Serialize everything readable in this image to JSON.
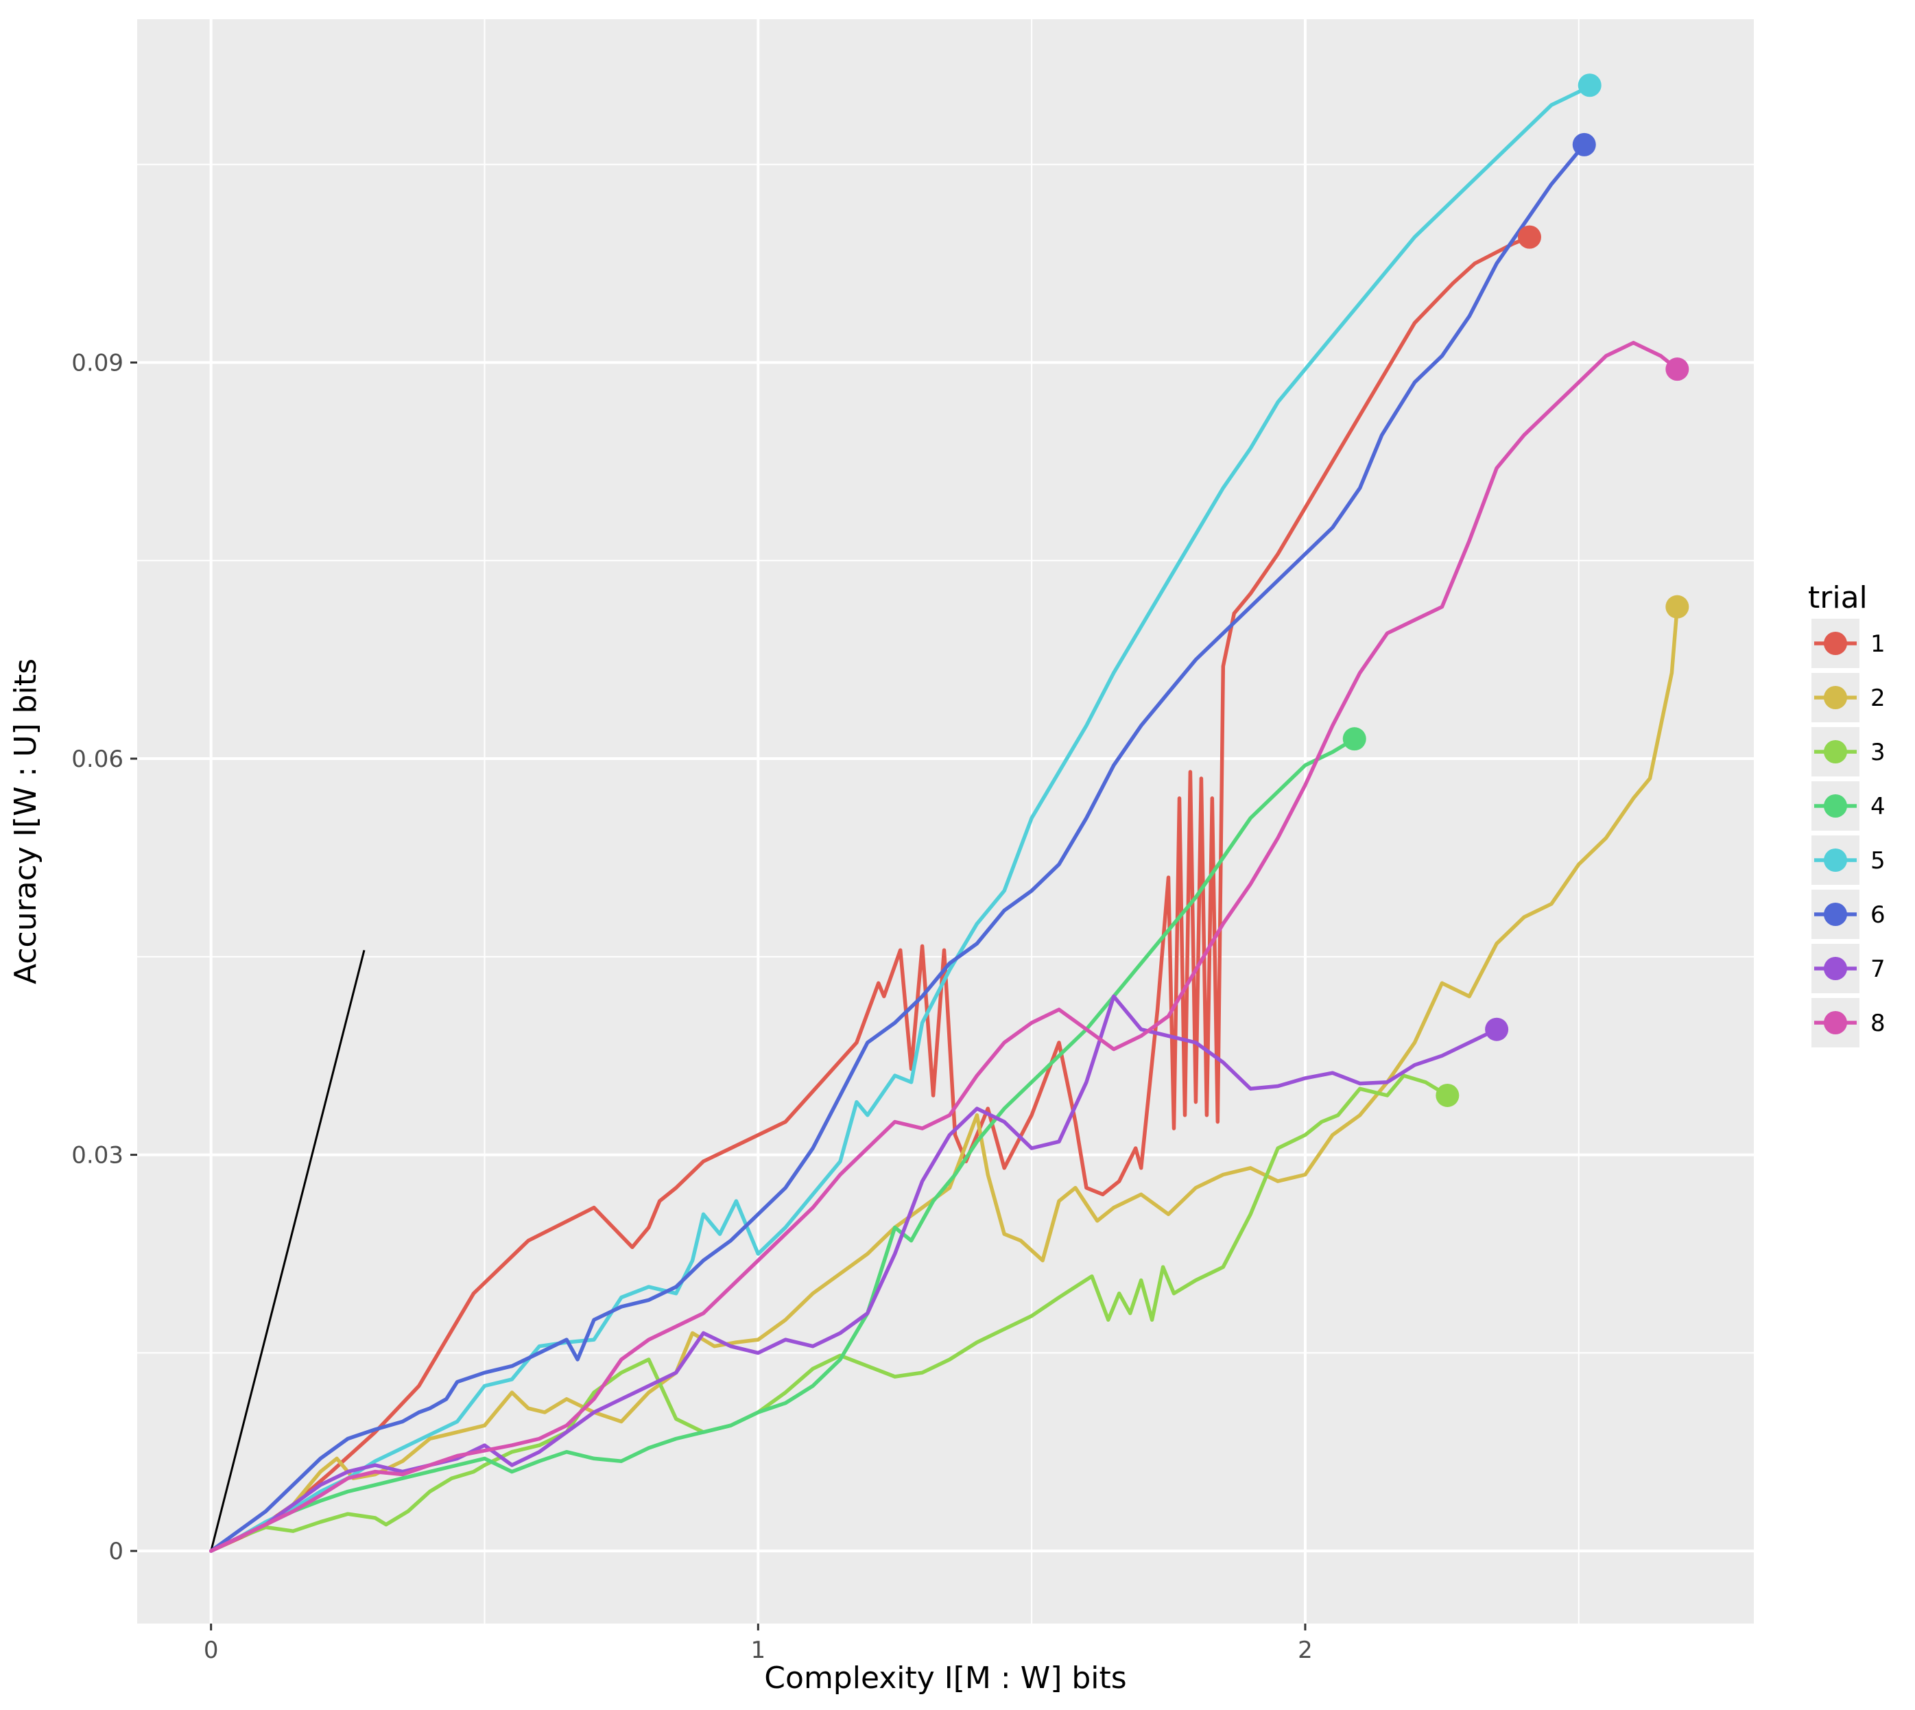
{
  "chart_data": {
    "type": "line",
    "xlabel": "Complexity I[M : W] bits",
    "ylabel": "Accuracy I[W : U] bits",
    "xlim": [
      -0.135,
      2.82
    ],
    "ylim": [
      -0.0055,
      0.116
    ],
    "x_ticks": [
      0,
      1,
      2
    ],
    "x_tick_labels": [
      "0",
      "1",
      "2"
    ],
    "y_ticks": [
      0,
      0.03,
      0.06,
      0.09
    ],
    "y_tick_labels": [
      "0",
      "0.03",
      "0.06",
      "0.09"
    ],
    "grid": true,
    "legend": {
      "title": "trial",
      "position": "right"
    },
    "reference_line": {
      "x": [
        0,
        0.28
      ],
      "y": [
        0,
        0.0455
      ],
      "color": "#000000"
    },
    "series": [
      {
        "name": "1",
        "color": "#E05A4F",
        "x": [
          0.0,
          0.08,
          0.15,
          0.22,
          0.3,
          0.38,
          0.48,
          0.58,
          0.7,
          0.77,
          0.8,
          0.82,
          0.85,
          0.9,
          0.95,
          1.05,
          1.18,
          1.22,
          1.23,
          1.26,
          1.28,
          1.3,
          1.32,
          1.34,
          1.36,
          1.38,
          1.42,
          1.45,
          1.5,
          1.55,
          1.58,
          1.6,
          1.63,
          1.66,
          1.69,
          1.7,
          1.73,
          1.75,
          1.76,
          1.77,
          1.78,
          1.79,
          1.8,
          1.81,
          1.82,
          1.83,
          1.84,
          1.85,
          1.87,
          1.9,
          1.95,
          2.0,
          2.1,
          2.2,
          2.27,
          2.31,
          2.38,
          2.41
        ],
        "y": [
          0.0,
          0.0015,
          0.0035,
          0.006,
          0.009,
          0.0125,
          0.0195,
          0.0235,
          0.026,
          0.023,
          0.0245,
          0.0265,
          0.0275,
          0.0295,
          0.0305,
          0.0325,
          0.0385,
          0.043,
          0.042,
          0.0455,
          0.0365,
          0.0458,
          0.0345,
          0.0455,
          0.0315,
          0.0295,
          0.0335,
          0.029,
          0.033,
          0.0385,
          0.0325,
          0.0275,
          0.027,
          0.028,
          0.0305,
          0.029,
          0.041,
          0.051,
          0.032,
          0.057,
          0.033,
          0.059,
          0.034,
          0.0585,
          0.033,
          0.057,
          0.0325,
          0.067,
          0.071,
          0.0725,
          0.0755,
          0.079,
          0.086,
          0.093,
          0.096,
          0.0975,
          0.099,
          0.0995
        ]
      },
      {
        "name": "2",
        "color": "#D4BB4A",
        "x": [
          0.0,
          0.05,
          0.1,
          0.15,
          0.2,
          0.23,
          0.26,
          0.3,
          0.35,
          0.4,
          0.45,
          0.5,
          0.52,
          0.55,
          0.58,
          0.61,
          0.65,
          0.7,
          0.75,
          0.8,
          0.85,
          0.88,
          0.92,
          0.96,
          1.0,
          1.05,
          1.1,
          1.15,
          1.2,
          1.25,
          1.3,
          1.35,
          1.4,
          1.42,
          1.45,
          1.48,
          1.52,
          1.55,
          1.58,
          1.62,
          1.65,
          1.7,
          1.75,
          1.8,
          1.85,
          1.9,
          1.95,
          2.0,
          2.05,
          2.1,
          2.15,
          2.2,
          2.25,
          2.3,
          2.35,
          2.4,
          2.45,
          2.5,
          2.55,
          2.6,
          2.63,
          2.65,
          2.67,
          2.68
        ],
        "y": [
          0.0,
          0.001,
          0.002,
          0.0035,
          0.006,
          0.007,
          0.0055,
          0.0058,
          0.0068,
          0.0085,
          0.009,
          0.0095,
          0.0105,
          0.012,
          0.0108,
          0.0105,
          0.0115,
          0.0105,
          0.0098,
          0.012,
          0.0135,
          0.0165,
          0.0155,
          0.0158,
          0.016,
          0.0175,
          0.0195,
          0.021,
          0.0225,
          0.0245,
          0.026,
          0.0275,
          0.033,
          0.0285,
          0.024,
          0.0235,
          0.022,
          0.0265,
          0.0275,
          0.025,
          0.026,
          0.027,
          0.0255,
          0.0275,
          0.0285,
          0.029,
          0.028,
          0.0285,
          0.0315,
          0.033,
          0.0355,
          0.0385,
          0.043,
          0.042,
          0.046,
          0.048,
          0.049,
          0.052,
          0.054,
          0.057,
          0.0585,
          0.0625,
          0.0665,
          0.0715
        ]
      },
      {
        "name": "3",
        "color": "#90D64E",
        "x": [
          0.0,
          0.05,
          0.1,
          0.15,
          0.2,
          0.25,
          0.3,
          0.32,
          0.36,
          0.4,
          0.44,
          0.48,
          0.5,
          0.55,
          0.6,
          0.65,
          0.7,
          0.75,
          0.8,
          0.85,
          0.9,
          0.95,
          1.0,
          1.05,
          1.1,
          1.15,
          1.2,
          1.25,
          1.3,
          1.35,
          1.4,
          1.45,
          1.5,
          1.55,
          1.58,
          1.61,
          1.64,
          1.66,
          1.68,
          1.7,
          1.72,
          1.74,
          1.76,
          1.8,
          1.85,
          1.9,
          1.95,
          2.0,
          2.03,
          2.06,
          2.1,
          2.15,
          2.18,
          2.22,
          2.26
        ],
        "y": [
          0.0,
          0.001,
          0.0018,
          0.0015,
          0.0022,
          0.0028,
          0.0025,
          0.002,
          0.003,
          0.0045,
          0.0055,
          0.006,
          0.0065,
          0.0075,
          0.008,
          0.009,
          0.012,
          0.0135,
          0.0145,
          0.01,
          0.009,
          0.0095,
          0.0105,
          0.012,
          0.0138,
          0.0148,
          0.014,
          0.0132,
          0.0135,
          0.0145,
          0.0158,
          0.0168,
          0.0178,
          0.0192,
          0.02,
          0.0208,
          0.0175,
          0.0195,
          0.018,
          0.0205,
          0.0175,
          0.0215,
          0.0195,
          0.0205,
          0.0215,
          0.0255,
          0.0305,
          0.0315,
          0.0325,
          0.033,
          0.035,
          0.0345,
          0.036,
          0.0355,
          0.0345
        ]
      },
      {
        "name": "4",
        "color": "#52D67A",
        "x": [
          0.0,
          0.05,
          0.1,
          0.15,
          0.2,
          0.25,
          0.3,
          0.35,
          0.4,
          0.45,
          0.5,
          0.55,
          0.6,
          0.65,
          0.7,
          0.75,
          0.8,
          0.85,
          0.9,
          0.95,
          1.0,
          1.05,
          1.1,
          1.15,
          1.2,
          1.25,
          1.28,
          1.32,
          1.36,
          1.4,
          1.45,
          1.5,
          1.55,
          1.6,
          1.65,
          1.7,
          1.75,
          1.8,
          1.85,
          1.9,
          1.95,
          2.0,
          2.05,
          2.09
        ],
        "y": [
          0.0,
          0.001,
          0.002,
          0.003,
          0.0038,
          0.0045,
          0.005,
          0.0055,
          0.006,
          0.0065,
          0.007,
          0.006,
          0.0068,
          0.0075,
          0.007,
          0.0068,
          0.0078,
          0.0085,
          0.009,
          0.0095,
          0.0105,
          0.0112,
          0.0125,
          0.0145,
          0.018,
          0.0245,
          0.0235,
          0.0265,
          0.0285,
          0.031,
          0.0335,
          0.0355,
          0.0375,
          0.0395,
          0.042,
          0.0445,
          0.047,
          0.0495,
          0.0525,
          0.0555,
          0.0575,
          0.0595,
          0.0605,
          0.0615
        ]
      },
      {
        "name": "5",
        "color": "#52CFD9",
        "x": [
          0.0,
          0.05,
          0.1,
          0.15,
          0.2,
          0.25,
          0.3,
          0.35,
          0.4,
          0.45,
          0.5,
          0.55,
          0.6,
          0.65,
          0.7,
          0.75,
          0.8,
          0.85,
          0.88,
          0.9,
          0.93,
          0.96,
          1.0,
          1.05,
          1.1,
          1.15,
          1.18,
          1.2,
          1.25,
          1.28,
          1.3,
          1.35,
          1.4,
          1.45,
          1.5,
          1.55,
          1.6,
          1.65,
          1.7,
          1.75,
          1.8,
          1.85,
          1.9,
          1.95,
          2.0,
          2.05,
          2.1,
          2.15,
          2.2,
          2.25,
          2.3,
          2.35,
          2.4,
          2.45,
          2.5,
          2.52
        ],
        "y": [
          0.0,
          0.001,
          0.0022,
          0.0032,
          0.0045,
          0.0055,
          0.0068,
          0.0078,
          0.0088,
          0.0098,
          0.0125,
          0.013,
          0.0155,
          0.0158,
          0.016,
          0.0192,
          0.02,
          0.0195,
          0.022,
          0.0255,
          0.024,
          0.0265,
          0.0225,
          0.0245,
          0.027,
          0.0295,
          0.034,
          0.033,
          0.036,
          0.0355,
          0.04,
          0.044,
          0.0475,
          0.05,
          0.0555,
          0.059,
          0.0625,
          0.0665,
          0.07,
          0.0735,
          0.077,
          0.0805,
          0.0835,
          0.087,
          0.0895,
          0.092,
          0.0945,
          0.097,
          0.0995,
          0.1015,
          0.1035,
          0.1055,
          0.1075,
          0.1095,
          0.1105,
          0.111
        ]
      },
      {
        "name": "6",
        "color": "#5068D6",
        "x": [
          0.0,
          0.05,
          0.1,
          0.15,
          0.2,
          0.25,
          0.3,
          0.35,
          0.38,
          0.4,
          0.43,
          0.45,
          0.5,
          0.55,
          0.6,
          0.65,
          0.67,
          0.7,
          0.75,
          0.8,
          0.85,
          0.9,
          0.95,
          1.0,
          1.05,
          1.1,
          1.15,
          1.2,
          1.25,
          1.3,
          1.35,
          1.4,
          1.45,
          1.5,
          1.55,
          1.6,
          1.65,
          1.7,
          1.75,
          1.8,
          1.85,
          1.9,
          1.95,
          2.0,
          2.05,
          2.1,
          2.14,
          2.17,
          2.2,
          2.25,
          2.3,
          2.35,
          2.4,
          2.45,
          2.51
        ],
        "y": [
          0.0,
          0.0015,
          0.003,
          0.005,
          0.007,
          0.0085,
          0.0092,
          0.0098,
          0.0105,
          0.0108,
          0.0115,
          0.0128,
          0.0135,
          0.014,
          0.015,
          0.016,
          0.0145,
          0.0175,
          0.0185,
          0.019,
          0.02,
          0.022,
          0.0235,
          0.0255,
          0.0275,
          0.0305,
          0.0345,
          0.0385,
          0.04,
          0.042,
          0.0445,
          0.046,
          0.0485,
          0.05,
          0.052,
          0.0555,
          0.0595,
          0.0625,
          0.065,
          0.0675,
          0.0695,
          0.0715,
          0.0735,
          0.0755,
          0.0775,
          0.0805,
          0.0845,
          0.0865,
          0.0885,
          0.0905,
          0.0935,
          0.0975,
          0.1005,
          0.1035,
          0.1065
        ]
      },
      {
        "name": "7",
        "color": "#9A52D6",
        "x": [
          0.0,
          0.05,
          0.1,
          0.15,
          0.2,
          0.25,
          0.3,
          0.35,
          0.4,
          0.45,
          0.5,
          0.55,
          0.6,
          0.65,
          0.7,
          0.75,
          0.8,
          0.85,
          0.9,
          0.95,
          1.0,
          1.05,
          1.1,
          1.15,
          1.2,
          1.25,
          1.3,
          1.35,
          1.4,
          1.45,
          1.5,
          1.55,
          1.6,
          1.65,
          1.7,
          1.75,
          1.8,
          1.85,
          1.9,
          1.95,
          2.0,
          2.05,
          2.1,
          2.15,
          2.2,
          2.25,
          2.3,
          2.35
        ],
        "y": [
          0.0,
          0.001,
          0.002,
          0.0035,
          0.005,
          0.006,
          0.0065,
          0.006,
          0.0065,
          0.007,
          0.008,
          0.0065,
          0.0075,
          0.009,
          0.0105,
          0.0115,
          0.0125,
          0.0135,
          0.0165,
          0.0155,
          0.015,
          0.016,
          0.0155,
          0.0165,
          0.018,
          0.0225,
          0.028,
          0.0315,
          0.0335,
          0.0325,
          0.0305,
          0.031,
          0.0355,
          0.042,
          0.0395,
          0.039,
          0.0385,
          0.037,
          0.035,
          0.0352,
          0.0358,
          0.0362,
          0.0354,
          0.0355,
          0.0368,
          0.0375,
          0.0385,
          0.0395
        ]
      },
      {
        "name": "8",
        "color": "#D652B0",
        "x": [
          0.0,
          0.05,
          0.1,
          0.15,
          0.2,
          0.25,
          0.3,
          0.35,
          0.4,
          0.45,
          0.5,
          0.55,
          0.6,
          0.65,
          0.7,
          0.75,
          0.8,
          0.85,
          0.9,
          0.95,
          1.0,
          1.05,
          1.1,
          1.15,
          1.2,
          1.25,
          1.3,
          1.35,
          1.4,
          1.45,
          1.5,
          1.55,
          1.6,
          1.65,
          1.7,
          1.75,
          1.8,
          1.85,
          1.9,
          1.95,
          2.0,
          2.05,
          2.1,
          2.15,
          2.2,
          2.25,
          2.3,
          2.35,
          2.4,
          2.45,
          2.5,
          2.55,
          2.6,
          2.65,
          2.68
        ],
        "y": [
          0.0,
          0.001,
          0.002,
          0.003,
          0.0042,
          0.0055,
          0.006,
          0.0058,
          0.0065,
          0.0072,
          0.0076,
          0.008,
          0.0085,
          0.0095,
          0.0115,
          0.0145,
          0.016,
          0.017,
          0.018,
          0.02,
          0.022,
          0.024,
          0.026,
          0.0285,
          0.0305,
          0.0325,
          0.032,
          0.033,
          0.036,
          0.0385,
          0.04,
          0.041,
          0.0395,
          0.038,
          0.039,
          0.0405,
          0.044,
          0.0475,
          0.0505,
          0.054,
          0.058,
          0.0625,
          0.0665,
          0.0695,
          0.0705,
          0.0715,
          0.0765,
          0.082,
          0.0845,
          0.0865,
          0.0885,
          0.0905,
          0.0915,
          0.0905,
          0.0895
        ]
      }
    ]
  }
}
